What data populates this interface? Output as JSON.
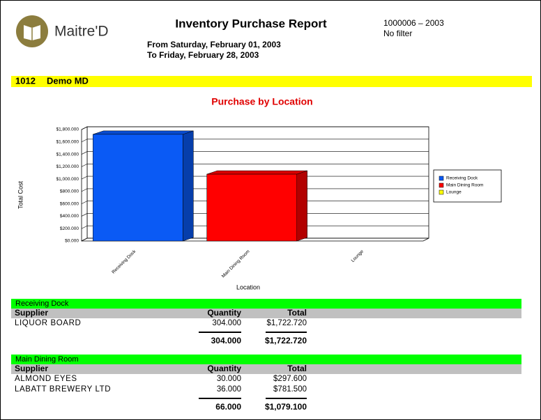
{
  "header": {
    "logo_text": "Maitre'D",
    "title": "Inventory Purchase Report",
    "date_from": "From Saturday, February 01, 2003",
    "date_to": "To Friday, February 28, 2003",
    "report_id": "1000006 – 2003",
    "filter": "No filter"
  },
  "section": {
    "code": "1012",
    "name": "Demo MD"
  },
  "chart_data": {
    "type": "bar",
    "title": "Purchase by Location",
    "categories": [
      "Receiving Dock",
      "Main Dining Room",
      "Lounge"
    ],
    "values": [
      1722.72,
      1079.1,
      0
    ],
    "colors": [
      "#0a5af5",
      "#ff0000",
      "#ffff00"
    ],
    "xlabel": "Location",
    "ylabel": "Total Cost",
    "ylim": [
      0,
      1800
    ],
    "yticks": [
      {
        "value": 0,
        "label": "$0.000"
      },
      {
        "value": 200,
        "label": "$200.000"
      },
      {
        "value": 400,
        "label": "$400.000"
      },
      {
        "value": 600,
        "label": "$600.000"
      },
      {
        "value": 800,
        "label": "$800.000"
      },
      {
        "value": 1000,
        "label": "$1,000.000"
      },
      {
        "value": 1200,
        "label": "$1,200.000"
      },
      {
        "value": 1400,
        "label": "$1,400.000"
      },
      {
        "value": 1600,
        "label": "$1,600.000"
      },
      {
        "value": 1800,
        "label": "$1,800.000"
      }
    ],
    "grid": true,
    "legend": "right"
  },
  "groups": [
    {
      "name": "Receiving Dock",
      "columns": [
        "Supplier",
        "Quantity",
        "Total"
      ],
      "rows": [
        [
          "LIQUOR BOARD",
          "304.000",
          "$1,722.720"
        ]
      ],
      "totals": [
        "304.000",
        "$1,722.720"
      ]
    },
    {
      "name": "Main Dining Room",
      "columns": [
        "Supplier",
        "Quantity",
        "Total"
      ],
      "rows": [
        [
          "ALMOND EYES",
          "30.000",
          "$297.600"
        ],
        [
          "LABATT BREWERY LTD",
          "36.000",
          "$781.500"
        ]
      ],
      "totals": [
        "66.000",
        "$1,079.100"
      ]
    }
  ]
}
